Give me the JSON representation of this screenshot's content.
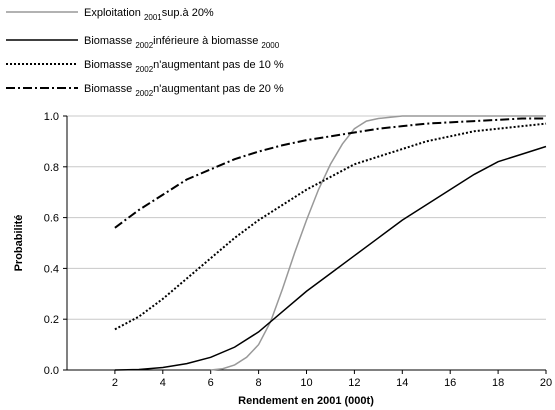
{
  "chart_data": {
    "type": "line",
    "xlabel": "Rendement en 2001 (000t)",
    "ylabel": "Probabilité",
    "xlim": [
      0,
      20
    ],
    "xticks": [
      2,
      4,
      6,
      8,
      10,
      12,
      14,
      16,
      18,
      20
    ],
    "ylim": [
      0,
      1
    ],
    "yticks": [
      {
        "value": 0,
        "label": "0.0"
      },
      0.2,
      0.4,
      0.6,
      0.8,
      {
        "value": 1,
        "label": "1.0"
      }
    ],
    "grid": true,
    "series": [
      {
        "name": [
          "Exploitation ",
          "2001",
          "sup.à 20%"
        ],
        "color": "#999999",
        "dash": "solid",
        "x": [
          6,
          6.5,
          7,
          7.5,
          8,
          8.5,
          9,
          9.5,
          10,
          10.5,
          11,
          11.5,
          12,
          12.5,
          13,
          14,
          15,
          16,
          17,
          18,
          19,
          20
        ],
        "values": [
          0,
          0.005,
          0.02,
          0.05,
          0.1,
          0.19,
          0.32,
          0.46,
          0.59,
          0.71,
          0.81,
          0.89,
          0.95,
          0.98,
          0.99,
          1,
          1,
          1,
          1,
          1,
          1,
          1
        ]
      },
      {
        "name": [
          "Biomasse ",
          "2002",
          "inférieure à biomasse ",
          "2000"
        ],
        "color": "#000000",
        "dash": "solid",
        "x": [
          2,
          3,
          4,
          5,
          6,
          7,
          8,
          9,
          10,
          11,
          12,
          13,
          14,
          15,
          16,
          17,
          18,
          19,
          20
        ],
        "values": [
          0,
          0.002,
          0.01,
          0.025,
          0.05,
          0.09,
          0.15,
          0.23,
          0.31,
          0.38,
          0.45,
          0.52,
          0.59,
          0.65,
          0.71,
          0.77,
          0.82,
          0.85,
          0.88
        ]
      },
      {
        "name": [
          "Biomasse ",
          "2002",
          "n'augmentant pas de 10 %"
        ],
        "color": "#000000",
        "dash": "dot",
        "x": [
          2,
          3,
          4,
          5,
          6,
          7,
          8,
          9,
          10,
          11,
          12,
          13,
          14,
          15,
          16,
          17,
          18,
          19,
          20
        ],
        "values": [
          0.16,
          0.21,
          0.28,
          0.36,
          0.44,
          0.52,
          0.59,
          0.65,
          0.71,
          0.76,
          0.81,
          0.84,
          0.87,
          0.9,
          0.92,
          0.94,
          0.95,
          0.96,
          0.97
        ]
      },
      {
        "name": [
          "Biomasse ",
          "2002",
          "n'augmentant pas de 20 %"
        ],
        "color": "#000000",
        "dash": "dashdot",
        "x": [
          2,
          3,
          4,
          5,
          6,
          7,
          8,
          9,
          10,
          11,
          12,
          13,
          14,
          15,
          16,
          17,
          18,
          19,
          20
        ],
        "values": [
          0.56,
          0.63,
          0.69,
          0.75,
          0.79,
          0.83,
          0.86,
          0.885,
          0.905,
          0.92,
          0.935,
          0.95,
          0.96,
          0.97,
          0.975,
          0.98,
          0.985,
          0.99,
          0.99
        ]
      }
    ]
  }
}
